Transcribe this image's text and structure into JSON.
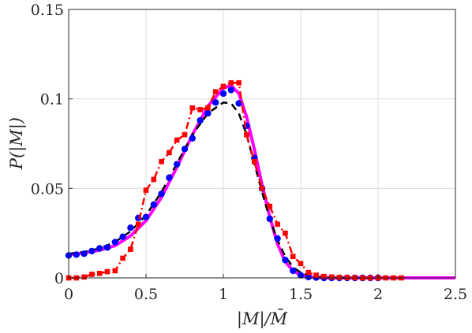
{
  "chart_data": {
    "type": "line",
    "title": "",
    "xlabel": "|M|/M̄",
    "ylabel": "P(|M|)",
    "xlim": [
      0,
      2.5
    ],
    "ylim": [
      0,
      0.15
    ],
    "xticks": [
      0,
      0.5,
      1,
      1.5,
      2,
      2.5
    ],
    "xtick_labels": [
      "0",
      "0.5",
      "1",
      "1.5",
      "2",
      "2.5"
    ],
    "yticks": [
      0,
      0.05,
      0.1,
      0.15
    ],
    "ytick_labels": [
      "0",
      "0.05",
      "0.1",
      "0.15"
    ],
    "grid": true,
    "legend": "none",
    "series": [
      {
        "style": "solid-line",
        "color": "#ff00ff",
        "x": [
          0,
          0.1,
          0.2,
          0.3,
          0.4,
          0.5,
          0.6,
          0.7,
          0.8,
          0.9,
          1.0,
          1.05,
          1.1,
          1.15,
          1.2,
          1.25,
          1.3,
          1.35,
          1.4,
          1.45,
          1.5,
          1.55,
          1.6,
          1.7,
          1.8,
          2.0,
          2.2,
          2.5
        ],
        "y": [
          0.013,
          0.014,
          0.0155,
          0.018,
          0.0235,
          0.032,
          0.045,
          0.062,
          0.08,
          0.096,
          0.106,
          0.1075,
          0.103,
          0.09,
          0.072,
          0.052,
          0.034,
          0.019,
          0.009,
          0.004,
          0.0015,
          0.0006,
          0.0002,
          0,
          0,
          0,
          0,
          0
        ]
      },
      {
        "style": "dashed-line",
        "color": "#000000",
        "x": [
          0,
          0.1,
          0.2,
          0.3,
          0.4,
          0.5,
          0.6,
          0.7,
          0.8,
          0.9,
          1.0,
          1.05,
          1.1,
          1.15,
          1.2,
          1.25,
          1.3,
          1.35,
          1.4,
          1.45,
          1.5,
          1.55,
          1.6,
          1.7,
          1.8,
          2.0
        ],
        "y": [
          0.0135,
          0.0145,
          0.0165,
          0.02,
          0.026,
          0.035,
          0.048,
          0.064,
          0.08,
          0.092,
          0.098,
          0.0975,
          0.092,
          0.08,
          0.064,
          0.048,
          0.033,
          0.021,
          0.012,
          0.006,
          0.003,
          0.0013,
          0.0005,
          0,
          0,
          0
        ]
      },
      {
        "style": "markers",
        "marker": "circle",
        "color": "#0000ff",
        "x": [
          0,
          0.05,
          0.1,
          0.15,
          0.2,
          0.25,
          0.3,
          0.35,
          0.4,
          0.45,
          0.5,
          0.55,
          0.6,
          0.65,
          0.7,
          0.75,
          0.8,
          0.85,
          0.9,
          0.95,
          1.0,
          1.05,
          1.1,
          1.15,
          1.2,
          1.25,
          1.3,
          1.35,
          1.4,
          1.45,
          1.5,
          1.55,
          1.6,
          1.65,
          1.7,
          1.75,
          1.8,
          1.85,
          1.9,
          1.95,
          2.0
        ],
        "y": [
          0.0125,
          0.013,
          0.0135,
          0.015,
          0.0165,
          0.017,
          0.02,
          0.023,
          0.028,
          0.0335,
          0.034,
          0.041,
          0.047,
          0.056,
          0.0635,
          0.072,
          0.078,
          0.088,
          0.092,
          0.098,
          0.103,
          0.105,
          0.0975,
          0.085,
          0.067,
          0.05,
          0.033,
          0.022,
          0.01,
          0.004,
          0.0015,
          0.0005,
          0.0002,
          0,
          0,
          0,
          0,
          0,
          0,
          0,
          0
        ]
      },
      {
        "style": "dash-dot-line-markers",
        "marker": "square",
        "color": "#ff0000",
        "x": [
          0,
          0.05,
          0.1,
          0.15,
          0.2,
          0.25,
          0.3,
          0.35,
          0.4,
          0.45,
          0.5,
          0.55,
          0.6,
          0.65,
          0.7,
          0.75,
          0.8,
          0.85,
          0.9,
          0.95,
          1.0,
          1.05,
          1.1,
          1.15,
          1.2,
          1.25,
          1.3,
          1.35,
          1.4,
          1.45,
          1.5,
          1.55,
          1.6,
          1.65,
          1.7,
          1.75,
          1.8,
          1.85,
          1.9,
          1.95,
          2.0,
          2.05,
          2.1,
          2.15
        ],
        "y": [
          0,
          0,
          0.0005,
          0.002,
          0.0025,
          0.0035,
          0.004,
          0.011,
          0.016,
          0.03,
          0.049,
          0.055,
          0.065,
          0.07,
          0.077,
          0.08,
          0.095,
          0.094,
          0.095,
          0.104,
          0.107,
          0.109,
          0.109,
          0.08,
          0.065,
          0.05,
          0.04,
          0.03,
          0.025,
          0.012,
          0.008,
          0.003,
          0.0015,
          0.0008,
          0.0005,
          0.0003,
          0.0002,
          0.0001,
          0,
          0,
          0,
          0,
          0,
          0
        ]
      }
    ]
  }
}
